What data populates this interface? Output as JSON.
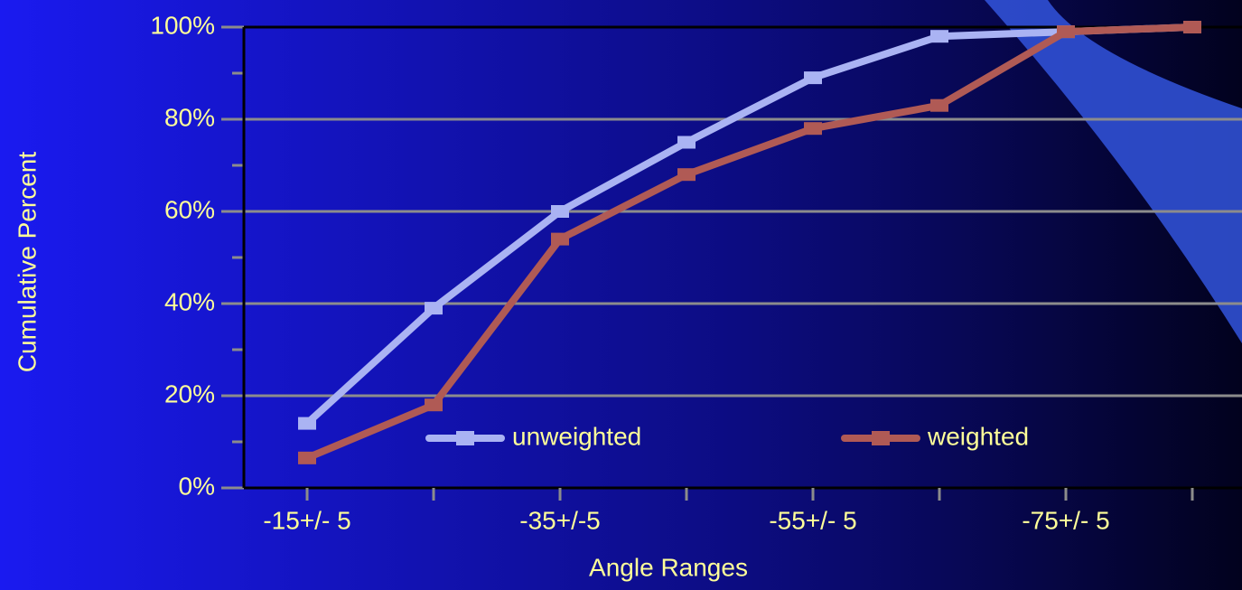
{
  "chart_data": {
    "type": "line",
    "x_label": "Angle Ranges",
    "y_label": "Cumulative Percent",
    "categories": [
      "-15+/- 5",
      null,
      "-35+/-5",
      null,
      "-55+/- 5",
      null,
      "-75+/- 5",
      null
    ],
    "series": [
      {
        "name": "unweighted",
        "color": "#aab3f3",
        "values": [
          14,
          39,
          60,
          75,
          89,
          98,
          99,
          100
        ]
      },
      {
        "name": "weighted",
        "color": "#b05a55",
        "values": [
          6.5,
          18,
          54,
          68,
          78,
          83,
          99,
          100
        ]
      }
    ],
    "ylim": [
      0,
      100
    ],
    "yticks": [
      {
        "value": 0,
        "label": "0%"
      },
      {
        "value": 20,
        "label": "20%"
      },
      {
        "value": 40,
        "label": "40%"
      },
      {
        "value": 60,
        "label": "60%"
      },
      {
        "value": 80,
        "label": "80%"
      },
      {
        "value": 100,
        "label": "100%"
      }
    ],
    "yminorticks": [
      10,
      30,
      50,
      70,
      90
    ],
    "grid": true,
    "legend": "bottom"
  }
}
